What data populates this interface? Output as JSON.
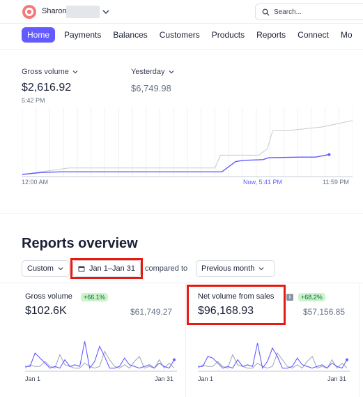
{
  "header": {
    "account_name": "Sharon",
    "search_placeholder": "Search..."
  },
  "nav": {
    "items": [
      "Home",
      "Payments",
      "Balances",
      "Customers",
      "Products",
      "Reports",
      "Connect",
      "Mo"
    ],
    "active": "Home"
  },
  "today": {
    "gross_volume_label": "Gross volume",
    "gross_volume_value": "$2,616.92",
    "gross_volume_time": "5:42 PM",
    "yesterday_label": "Yesterday",
    "yesterday_value": "$6,749.98",
    "axis_start": "12:00 AM",
    "axis_now": "Now, 5:41 PM",
    "axis_end": "11:59 PM",
    "chart_data": {
      "type": "line",
      "x_unit": "hour of day",
      "ylim": [
        0,
        1
      ],
      "series": [
        {
          "color": "#c6cad2",
          "points": [
            [
              0,
              0.0
            ],
            [
              3.4,
              0.1
            ],
            [
              4.6,
              0.1
            ],
            [
              14.0,
              0.1
            ],
            [
              14.4,
              0.3
            ],
            [
              15.6,
              0.3
            ],
            [
              17.2,
              0.3
            ],
            [
              17.8,
              0.4
            ],
            [
              18.2,
              0.68
            ],
            [
              19.2,
              0.68
            ],
            [
              21.8,
              0.74
            ],
            [
              24,
              0.84
            ]
          ]
        },
        {
          "color": "#635bff",
          "points": [
            [
              0,
              0.0
            ],
            [
              1.4,
              0.03
            ],
            [
              2.7,
              0.04
            ],
            [
              14.5,
              0.04
            ],
            [
              15.5,
              0.2
            ],
            [
              16.1,
              0.22
            ],
            [
              17.5,
              0.23
            ],
            [
              17.9,
              0.26
            ],
            [
              20.2,
              0.27
            ],
            [
              21.3,
              0.27
            ],
            [
              22.3,
              0.31
            ]
          ]
        }
      ]
    }
  },
  "reports": {
    "title": "Reports overview",
    "period_select": "Custom",
    "date_range": "Jan 1–Jan 31",
    "compared_to": "compared to",
    "compare_select": "Previous month",
    "cards": [
      {
        "title": "Gross volume",
        "delta": "+66.1%",
        "value": "$102.6K",
        "previous": "$61,749.27",
        "date_start": "Jan 1",
        "date_end": "Jan 31",
        "chart_data": {
          "type": "line",
          "x": [
            1,
            2,
            3,
            4,
            5,
            6,
            7,
            8,
            9,
            10,
            11,
            12,
            13,
            14,
            15,
            16,
            17,
            18,
            19,
            20,
            21,
            22,
            23,
            24,
            25,
            26,
            27,
            28,
            29,
            30,
            31
          ],
          "series": [
            {
              "color": "#635bff",
              "values": [
                0.1,
                0.1,
                0.5,
                0.35,
                0.2,
                0.05,
                0.1,
                0.05,
                0.3,
                0.1,
                0.15,
                0.1,
                0.85,
                0.05,
                0.25,
                0.7,
                0.4,
                0.05,
                0.05,
                0.1,
                0.35,
                0.15,
                0.1,
                0.05,
                0.1,
                0.15,
                0.05,
                0.2,
                0.1,
                0.05,
                0.3
              ]
            },
            {
              "color": "#a3acb9",
              "values": [
                0.05,
                0.15,
                0.1,
                0.1,
                0.25,
                0.1,
                0.05,
                0.45,
                0.15,
                0.1,
                0.05,
                0.05,
                0.2,
                0.1,
                0.05,
                0.1,
                0.55,
                0.3,
                0.1,
                0.05,
                0.15,
                0.05,
                0.25,
                0.4,
                0.05,
                0.1,
                0.05,
                0.3,
                0.05,
                0.2,
                0.05
              ]
            }
          ]
        }
      },
      {
        "title": "Net volume from sales",
        "delta": "+68.2%",
        "value": "$96,168.93",
        "previous": "$57,156.85",
        "date_start": "Jan 1",
        "date_end": "Jan 31",
        "chart_data": {
          "type": "line",
          "x": [
            1,
            2,
            3,
            4,
            5,
            6,
            7,
            8,
            9,
            10,
            11,
            12,
            13,
            14,
            15,
            16,
            17,
            18,
            19,
            20,
            21,
            22,
            23,
            24,
            25,
            26,
            27,
            28,
            29,
            30,
            31
          ],
          "series": [
            {
              "color": "#635bff",
              "values": [
                0.1,
                0.1,
                0.4,
                0.35,
                0.2,
                0.05,
                0.1,
                0.05,
                0.3,
                0.1,
                0.15,
                0.1,
                0.8,
                0.05,
                0.25,
                0.65,
                0.4,
                0.05,
                0.05,
                0.1,
                0.35,
                0.15,
                0.1,
                0.05,
                0.1,
                0.15,
                0.05,
                0.2,
                0.1,
                0.05,
                0.3
              ]
            },
            {
              "color": "#a3acb9",
              "values": [
                0.05,
                0.15,
                0.1,
                0.1,
                0.25,
                0.1,
                0.05,
                0.45,
                0.15,
                0.1,
                0.05,
                0.05,
                0.2,
                0.1,
                0.05,
                0.1,
                0.5,
                0.3,
                0.1,
                0.05,
                0.15,
                0.05,
                0.25,
                0.4,
                0.05,
                0.1,
                0.05,
                0.3,
                0.05,
                0.2,
                0.05
              ]
            }
          ]
        }
      }
    ]
  },
  "colors": {
    "accent": "#635bff",
    "highlight": "#e8190f",
    "badge_bg": "#cbf4c9",
    "badge_text": "#0e6245"
  }
}
